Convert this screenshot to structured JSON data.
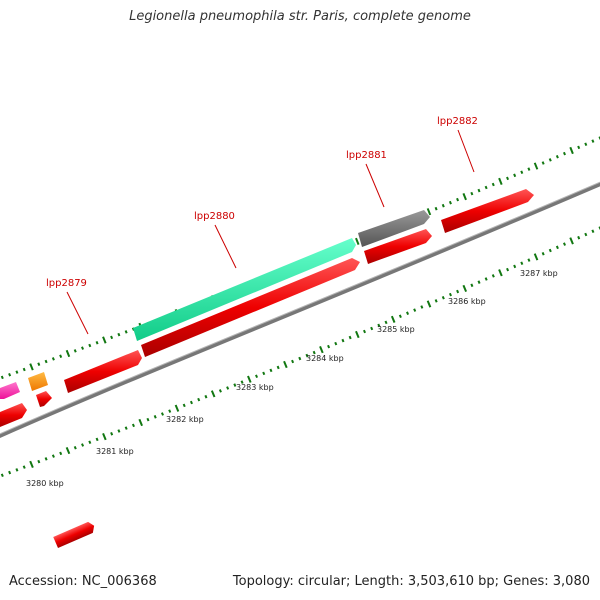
{
  "title": "Legionella pneumophila str. Paris, complete genome",
  "footer": {
    "accession": "Accession: NC_006368",
    "summary": "Topology: circular; Length: 3,503,610 bp; Genes: 3,080"
  },
  "axis": {
    "unit": "kbp",
    "tick_labels": [
      "3280 kbp",
      "3281 kbp",
      "3282 kbp",
      "3283 kbp",
      "3284 kbp",
      "3285 kbp",
      "3286 kbp",
      "3287 kbp"
    ]
  },
  "gene_labels": [
    "lpp2879",
    "lpp2880",
    "lpp2881",
    "lpp2882"
  ],
  "colors": {
    "backbone": "#8a8a8a",
    "gene_red": "#ff1a1a",
    "gene_teal": "#22ee99",
    "gene_gray": "#6d6d6d",
    "gene_orange": "#ff9911",
    "gene_pink": "#ff33aa",
    "tick": "#117711",
    "label_red": "#cc0000",
    "tick_text": "#222222"
  }
}
